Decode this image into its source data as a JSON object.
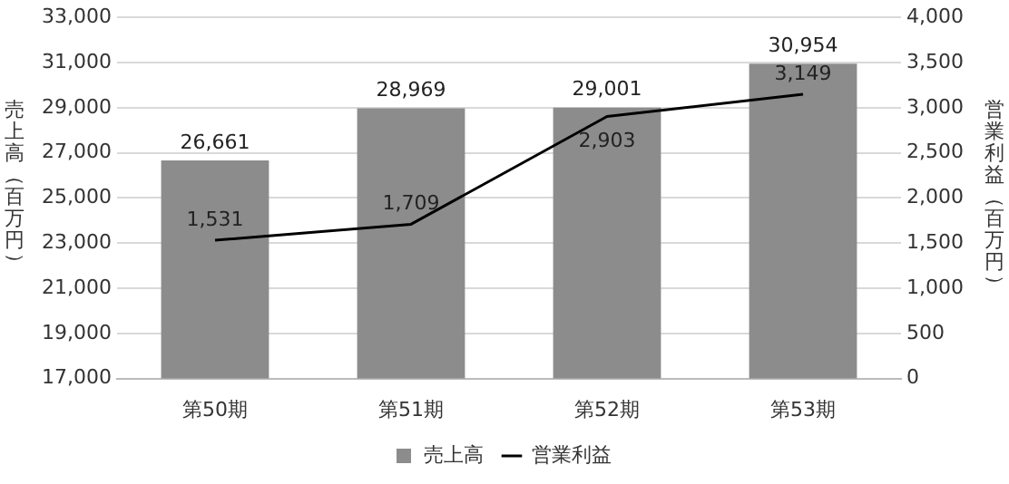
{
  "chart_data": {
    "type": "bar",
    "categories": [
      "第50期",
      "第51期",
      "第52期",
      "第53期"
    ],
    "series": [
      {
        "name": "売上高",
        "color": "#8c8c8c",
        "values": [
          26661,
          28969,
          29001,
          30954
        ],
        "value_labels": [
          "26,661",
          "28,969",
          "29,001",
          "30,954"
        ]
      },
      {
        "name": "営業利益",
        "type": "line",
        "axis": "y2",
        "color": "#000000",
        "values": [
          1531,
          1709,
          2903,
          3149
        ],
        "value_labels": [
          "1,531",
          "1,709",
          "2,903",
          "3,149"
        ]
      }
    ],
    "ylabel": "売上高（百万円）",
    "y2label": "営業利益（百万円）",
    "ylim": [
      17000,
      33000
    ],
    "yticks": [
      {
        "value": 17000,
        "label": "17,000"
      },
      {
        "value": 19000,
        "label": "19,000"
      },
      {
        "value": 21000,
        "label": "21,000"
      },
      {
        "value": 23000,
        "label": "23,000"
      },
      {
        "value": 25000,
        "label": "25,000"
      },
      {
        "value": 27000,
        "label": "27,000"
      },
      {
        "value": 29000,
        "label": "29,000"
      },
      {
        "value": 31000,
        "label": "31,000"
      },
      {
        "value": 33000,
        "label": "33,000"
      }
    ],
    "y2lim": [
      0,
      4000
    ],
    "y2ticks": [
      0,
      500,
      {
        "value": 1000,
        "label": "1,000"
      },
      {
        "value": 1500,
        "label": "1,500"
      },
      {
        "value": 2000,
        "label": "2,000"
      },
      {
        "value": 2500,
        "label": "2,500"
      },
      {
        "value": 3000,
        "label": "3,000"
      },
      {
        "value": 3500,
        "label": "3,500"
      },
      {
        "value": 4000,
        "label": "4,000"
      }
    ],
    "grid": "y",
    "legend": "bottom",
    "marker": "none",
    "line_style": "solid"
  }
}
